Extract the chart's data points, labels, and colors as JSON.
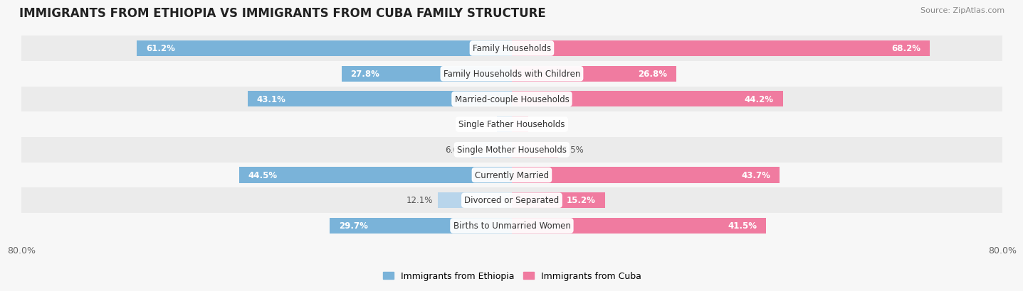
{
  "title": "IMMIGRANTS FROM ETHIOPIA VS IMMIGRANTS FROM CUBA FAMILY STRUCTURE",
  "source": "Source: ZipAtlas.com",
  "categories": [
    "Family Households",
    "Family Households with Children",
    "Married-couple Households",
    "Single Father Households",
    "Single Mother Households",
    "Currently Married",
    "Divorced or Separated",
    "Births to Unmarried Women"
  ],
  "ethiopia_values": [
    61.2,
    27.8,
    43.1,
    2.4,
    6.6,
    44.5,
    12.1,
    29.7
  ],
  "cuba_values": [
    68.2,
    26.8,
    44.2,
    2.7,
    7.5,
    43.7,
    15.2,
    41.5
  ],
  "ethiopia_color_strong": "#7ab3d9",
  "ethiopia_color_light": "#b8d5eb",
  "cuba_color_strong": "#f07ba0",
  "cuba_color_light": "#f5b8ca",
  "axis_max": 80.0,
  "axis_label_left": "80.0%",
  "axis_label_right": "80.0%",
  "legend_ethiopia": "Immigrants from Ethiopia",
  "legend_cuba": "Immigrants from Cuba",
  "bar_height": 0.62,
  "background_color": "#f7f7f7",
  "row_bg_even": "#ebebeb",
  "row_bg_odd": "#f7f7f7",
  "title_fontsize": 12,
  "value_fontsize": 8.5,
  "category_fontsize": 8.5,
  "strong_threshold": 15
}
